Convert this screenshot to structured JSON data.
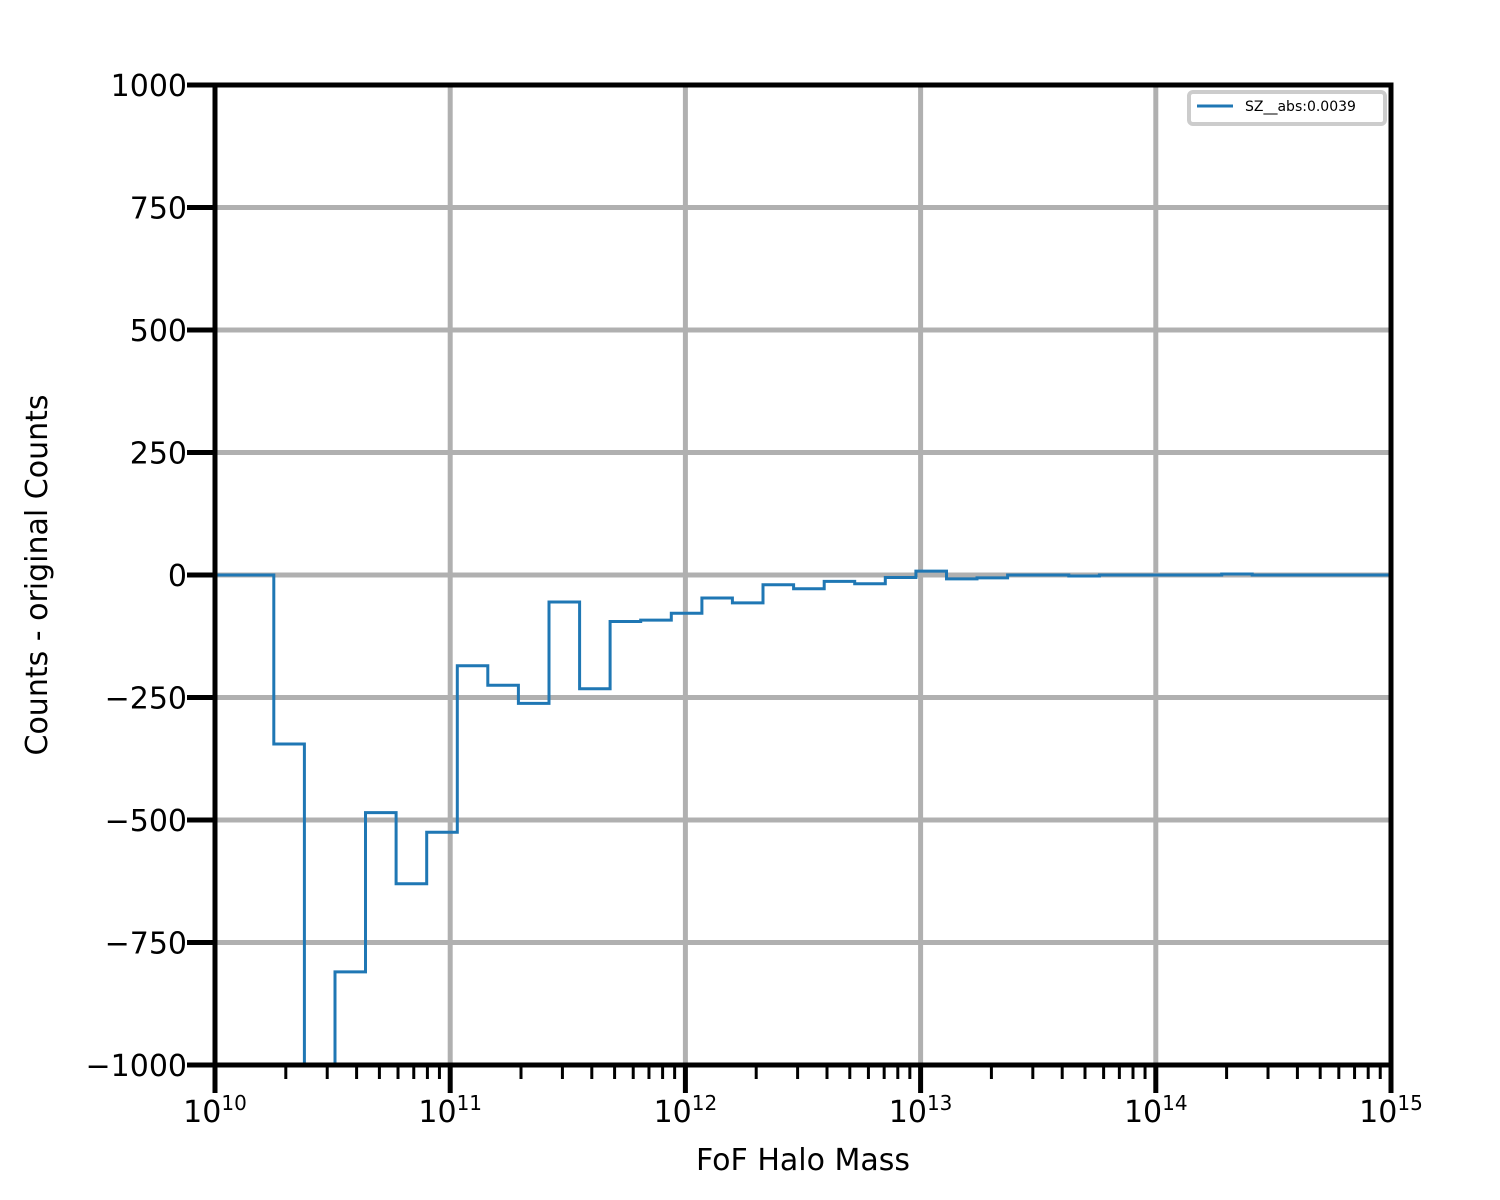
{
  "chart_data": {
    "type": "step",
    "xlabel": "FoF Halo Mass",
    "ylabel": "Counts - original Counts",
    "xscale": "log",
    "xlim": [
      10000000000.0,
      1000000000000000.0
    ],
    "ylim": [
      -1000,
      1000
    ],
    "yticks": [
      -1000,
      -750,
      -500,
      -250,
      0,
      250,
      500,
      750,
      1000
    ],
    "ytick_labels": [
      "−1000",
      "−750",
      "−500",
      "−250",
      "0",
      "250",
      "500",
      "750",
      "1000"
    ],
    "xticks": [
      {
        "base": "10",
        "exp": "10",
        "value": 10000000000.0
      },
      {
        "base": "10",
        "exp": "11",
        "value": 100000000000.0
      },
      {
        "base": "10",
        "exp": "12",
        "value": 1000000000000.0
      },
      {
        "base": "10",
        "exp": "13",
        "value": 10000000000000.0
      },
      {
        "base": "10",
        "exp": "14",
        "value": 100000000000000.0
      },
      {
        "base": "10",
        "exp": "15",
        "value": 1000000000000000.0
      }
    ],
    "grid": true,
    "legend_position": "top-right",
    "series": [
      {
        "name": "SZ__abs:0.0039",
        "color": "#1f77b4",
        "bin_edges_log10": [
          10.0,
          10.25,
          10.38,
          10.51,
          10.64,
          10.77,
          10.9,
          11.03,
          11.16,
          11.29,
          11.42,
          11.55,
          11.68,
          11.81,
          11.94,
          12.07,
          12.2,
          12.33,
          12.46,
          12.59,
          12.72,
          12.85,
          12.98,
          13.11,
          13.24,
          13.37,
          13.5,
          13.63,
          13.76,
          13.89,
          14.02,
          14.15,
          14.28,
          14.41,
          14.54,
          15.0
        ],
        "values": [
          0,
          -345,
          -1100,
          -810,
          -485,
          -630,
          -525,
          -185,
          -225,
          -262,
          -55,
          -232,
          -95,
          -92,
          -78,
          -47,
          -57,
          -20,
          -28,
          -13,
          -18,
          -5,
          8,
          -8,
          -6,
          0,
          0,
          -2,
          0,
          0,
          0,
          0,
          2,
          0,
          0
        ]
      }
    ]
  }
}
